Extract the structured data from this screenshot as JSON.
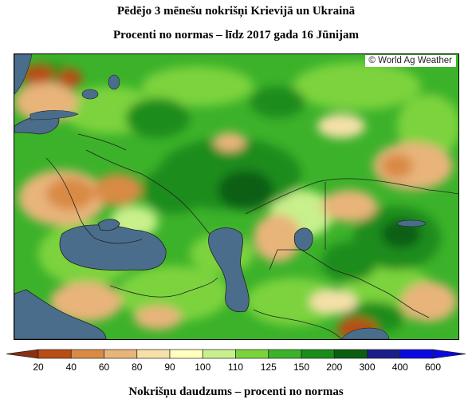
{
  "header": {
    "title": "Pēdējo 3 mēnešu nokrišņi Krievijā un Ukrainā",
    "subtitle": "Procenti no normas – līdz 2017 gada 16 Jūnijam"
  },
  "map": {
    "credit": "© World Ag Weather",
    "water_color": "#4a6d8c",
    "border_color": "#222222"
  },
  "legend": {
    "labels": [
      "20",
      "40",
      "60",
      "80",
      "90",
      "100",
      "110",
      "125",
      "150",
      "200",
      "300",
      "400",
      "600"
    ],
    "colors": [
      "#8b2e12",
      "#b84d16",
      "#d98a45",
      "#e8b47a",
      "#f5e0a8",
      "#ffffbe",
      "#c8f08c",
      "#7bd33c",
      "#3cb22a",
      "#1a8c1a",
      "#0b5e12",
      "#1c1f8a",
      "#0a0ae0"
    ],
    "title": "Nokrišņu daudzums – procenti no normas"
  }
}
